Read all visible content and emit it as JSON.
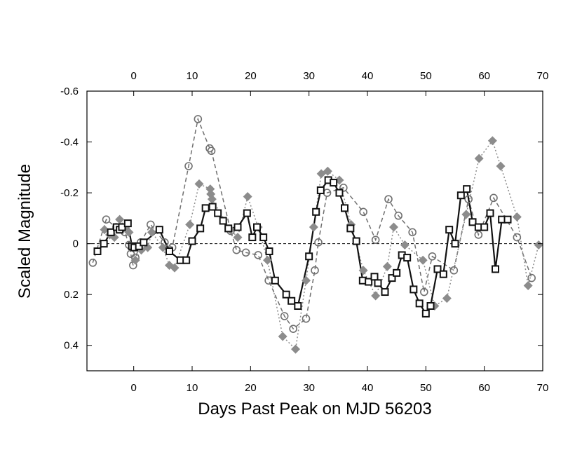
{
  "chart_data": {
    "type": "line",
    "xlabel": "Days Past Peak on MJD 56203",
    "ylabel": "Scaled Magnitude",
    "xlim": [
      -8,
      70
    ],
    "ylim": [
      0.5,
      -0.6
    ],
    "x_ticks": [
      0,
      10,
      20,
      30,
      40,
      50,
      60,
      70
    ],
    "x_tick_labels": [
      "0",
      "10",
      "20",
      "30",
      "40",
      "50",
      "60",
      "70"
    ],
    "top_x_tick_labels": [
      "0",
      "10",
      "20",
      "30",
      "40",
      "50",
      "60",
      "70"
    ],
    "y_ticks": [
      -0.6,
      -0.4,
      -0.2,
      0,
      0.2,
      0.4
    ],
    "y_tick_labels": [
      "-0.6",
      "-0.4",
      "-0.2",
      "0",
      "0.2",
      "0.4"
    ],
    "reference_line": 0,
    "series": [
      {
        "name": "circles (dashed)",
        "marker": "circle",
        "color": "#707070",
        "line": "dashed",
        "x": [
          -7.0,
          -4.7,
          -3.0,
          -1.5,
          -0.8,
          -0.5,
          -0.1,
          0.3,
          1.2,
          2.9,
          5.3,
          6.6,
          9.4,
          11.0,
          13.0,
          13.3,
          16.6,
          17.6,
          19.2,
          21.3,
          23.1,
          25.8,
          27.3,
          29.5,
          31.0,
          31.6,
          33.1,
          35.9,
          39.3,
          41.4,
          43.6,
          45.3,
          47.7,
          49.7,
          51.1,
          54.8,
          57.3,
          59.0,
          61.6,
          65.6,
          68.1
        ],
        "y": [
          0.075,
          -0.095,
          -0.065,
          -0.045,
          0.005,
          0.04,
          0.085,
          0.055,
          -0.005,
          -0.075,
          -0.005,
          0.015,
          -0.305,
          -0.49,
          -0.375,
          -0.365,
          -0.05,
          0.025,
          0.035,
          0.045,
          0.145,
          0.285,
          0.335,
          0.295,
          0.105,
          -0.005,
          -0.2,
          -0.22,
          -0.125,
          -0.015,
          -0.175,
          -0.11,
          -0.045,
          0.19,
          0.05,
          0.105,
          -0.175,
          -0.035,
          -0.18,
          -0.025,
          0.135
        ]
      },
      {
        "name": "diamonds (dotted)",
        "marker": "diamond",
        "color": "#8c8c8c",
        "line": "dotted",
        "x": [
          -5.0,
          -4.1,
          -3.3,
          -2.4,
          -1.5,
          -0.8,
          -0.2,
          0.3,
          1.3,
          2.4,
          3.1,
          5.0,
          6.1,
          7.0,
          9.6,
          11.2,
          13.1,
          13.2,
          13.4,
          16.6,
          17.8,
          19.5,
          21.3,
          22.9,
          25.5,
          27.7,
          29.5,
          30.8,
          32.1,
          33.2,
          35.2,
          37.2,
          39.3,
          41.4,
          43.4,
          44.5,
          46.4,
          49.5,
          51.5,
          53.6,
          56.9,
          59.1,
          61.4,
          62.8,
          65.6,
          67.5,
          69.3
        ],
        "y": [
          -0.055,
          -0.035,
          -0.025,
          -0.095,
          -0.065,
          -0.045,
          0.015,
          0.065,
          0.025,
          0.015,
          -0.045,
          0.015,
          0.085,
          0.095,
          -0.075,
          -0.235,
          -0.215,
          -0.195,
          -0.175,
          -0.055,
          -0.025,
          -0.185,
          -0.065,
          0.065,
          0.365,
          0.415,
          0.145,
          -0.065,
          -0.275,
          -0.285,
          -0.25,
          -0.075,
          0.105,
          0.205,
          0.09,
          -0.065,
          0.005,
          0.065,
          0.245,
          0.215,
          -0.115,
          -0.335,
          -0.405,
          -0.305,
          -0.105,
          0.165,
          0.005
        ]
      },
      {
        "name": "squares (solid)",
        "marker": "square",
        "color": "#111111",
        "line": "solid",
        "x": [
          -6.2,
          -5.1,
          -3.9,
          -2.9,
          -2.4,
          -2.0,
          -1.0,
          -0.3,
          0.1,
          0.9,
          1.7,
          4.4,
          6.1,
          8.0,
          9.0,
          10.0,
          11.4,
          12.3,
          13.5,
          14.4,
          15.3,
          16.2,
          17.8,
          19.4,
          20.3,
          21.1,
          22.2,
          23.2,
          24.2,
          26.1,
          27.0,
          28.1,
          30.0,
          31.2,
          32.0,
          33.3,
          34.2,
          35.2,
          36.1,
          37.1,
          38.1,
          39.2,
          40.2,
          41.2,
          41.8,
          43.0,
          44.2,
          45.0,
          45.9,
          46.8,
          47.9,
          48.9,
          50.0,
          50.8,
          52.0,
          53.0,
          54.0,
          55.0,
          56.0,
          57.0,
          58.0,
          59.0,
          60.0,
          61.0,
          61.9,
          63.0,
          64.0
        ],
        "y": [
          0.03,
          0.0,
          -0.045,
          -0.065,
          -0.055,
          -0.065,
          -0.08,
          0.01,
          0.015,
          0.01,
          -0.005,
          -0.055,
          0.03,
          0.065,
          0.065,
          -0.01,
          -0.06,
          -0.14,
          -0.145,
          -0.12,
          -0.09,
          -0.06,
          -0.065,
          -0.12,
          -0.025,
          -0.065,
          -0.025,
          0.03,
          0.145,
          0.2,
          0.225,
          0.245,
          0.05,
          -0.125,
          -0.21,
          -0.25,
          -0.24,
          -0.2,
          -0.14,
          -0.06,
          -0.01,
          0.145,
          0.15,
          0.13,
          0.155,
          0.19,
          0.135,
          0.115,
          0.045,
          0.055,
          0.18,
          0.235,
          0.275,
          0.245,
          0.1,
          0.12,
          -0.055,
          0.0,
          -0.19,
          -0.215,
          -0.085,
          -0.065,
          -0.065,
          -0.12,
          0.1,
          -0.095,
          -0.095
        ]
      }
    ]
  }
}
